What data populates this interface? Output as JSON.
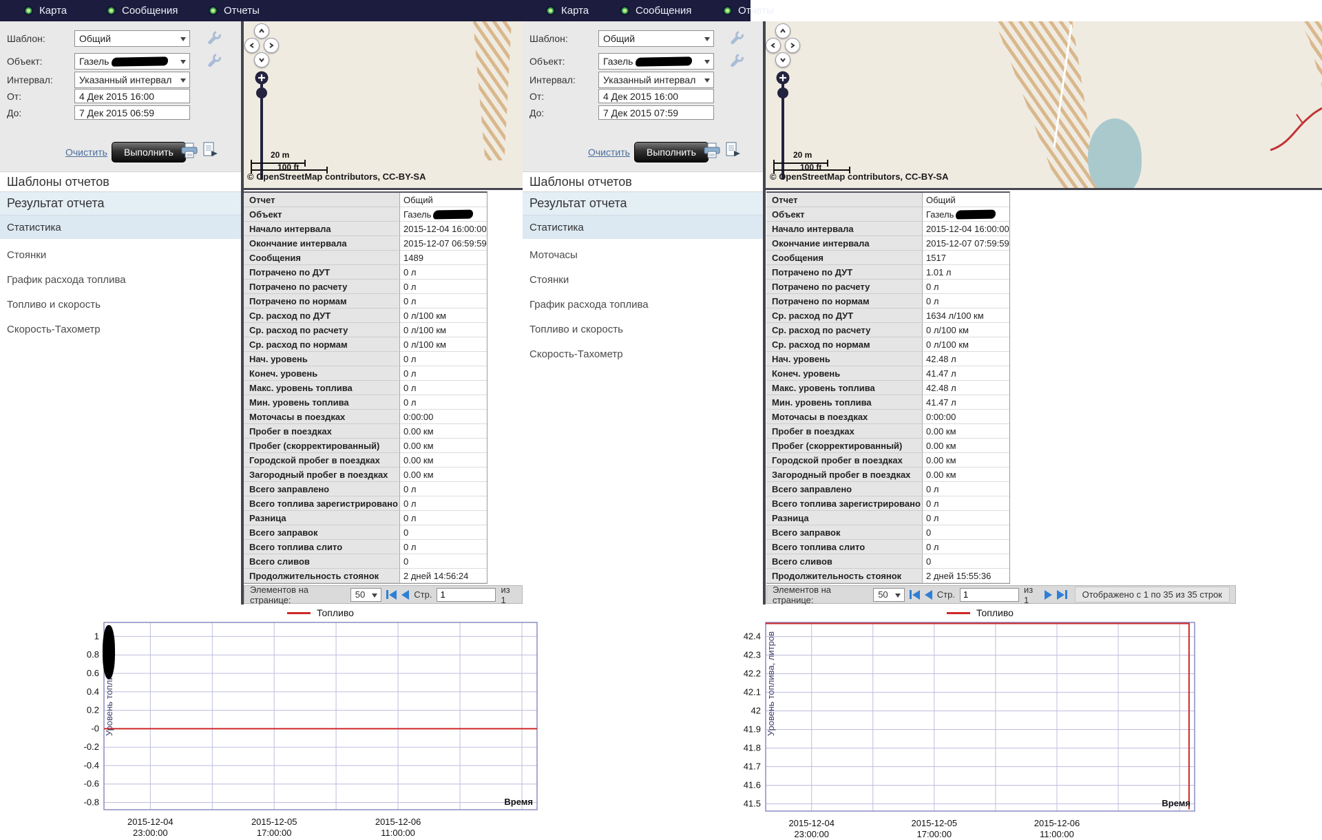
{
  "panels": [
    {
      "nav": {
        "items": [
          "Карта",
          "Сообщения",
          "Отчеты"
        ]
      },
      "form": {
        "template_label": "Шаблон:",
        "template_value": "Общий",
        "object_label": "Объект:",
        "object_value": "Газель",
        "interval_label": "Интервал:",
        "interval_value": "Указанный интервал",
        "from_label": "От:",
        "from_value": "4 Дек 2015 16:00",
        "to_label": "До:",
        "to_value": "7 Дек 2015 06:59",
        "clear_label": "Очистить",
        "run_label": "Выполнить"
      },
      "map": {
        "scale_m": "20 m",
        "scale_ft": "100 ft",
        "copyright": "© OpenStreetMap contributors, CC-BY-SA"
      },
      "sidebar": {
        "header": "Шаблоны отчетов",
        "result": "Результат отчета",
        "selected": "Статистика",
        "items": [
          "Стоянки",
          "График расхода топлива",
          "Топливо и скорость",
          "Скорость-Тахометр"
        ]
      },
      "stats_rows": [
        {
          "label": "Отчет",
          "value": "Общий"
        },
        {
          "label": "Объект",
          "value": "Газель",
          "redacted": true
        },
        {
          "label": "Начало интервала",
          "value": "2015-12-04 16:00:00"
        },
        {
          "label": "Окончание интервала",
          "value": "2015-12-07 06:59:59"
        },
        {
          "label": "Сообщения",
          "value": "1489"
        },
        {
          "label": "Потрачено по ДУТ",
          "value": "0 л"
        },
        {
          "label": "Потрачено по расчету",
          "value": "0 л"
        },
        {
          "label": "Потрачено по нормам",
          "value": "0 л"
        },
        {
          "label": "Ср. расход по ДУТ",
          "value": "0 л/100 км"
        },
        {
          "label": "Ср. расход по расчету",
          "value": "0 л/100 км"
        },
        {
          "label": "Ср. расход по нормам",
          "value": "0 л/100 км"
        },
        {
          "label": "Нач. уровень",
          "value": "0 л"
        },
        {
          "label": "Конеч. уровень",
          "value": "0 л"
        },
        {
          "label": "Макс. уровень топлива",
          "value": "0 л"
        },
        {
          "label": "Мин. уровень топлива",
          "value": "0 л"
        },
        {
          "label": "Моточасы в поездках",
          "value": "0:00:00"
        },
        {
          "label": "Пробег в поездках",
          "value": "0.00 км"
        },
        {
          "label": "Пробег (скорректированный)",
          "value": "0.00 км"
        },
        {
          "label": "Городской пробег в поездках",
          "value": "0.00 км"
        },
        {
          "label": "Загородный пробег в поездках",
          "value": "0.00 км"
        },
        {
          "label": "Всего заправлено",
          "value": "0 л"
        },
        {
          "label": "Всего топлива зарегистрировано",
          "value": "0 л"
        },
        {
          "label": "Разница",
          "value": "0 л"
        },
        {
          "label": "Всего заправок",
          "value": "0"
        },
        {
          "label": "Всего топлива слито",
          "value": "0 л"
        },
        {
          "label": "Всего сливов",
          "value": "0"
        },
        {
          "label": "Продолжительность стоянок",
          "value": "2 дней 14:56:24"
        }
      ],
      "pagination": {
        "items_label": "Элементов на странице:",
        "per_page": "50",
        "page_label": "Стр.",
        "page_value": "1",
        "of_label": "из 1"
      }
    },
    {
      "nav": {
        "items": [
          "Карта",
          "Сообщения",
          "Отчеты"
        ]
      },
      "form": {
        "template_label": "Шаблон:",
        "template_value": "Общий",
        "object_label": "Объект:",
        "object_value": "Газель",
        "interval_label": "Интервал:",
        "interval_value": "Указанный интервал",
        "from_label": "От:",
        "from_value": "4 Дек 2015 16:00",
        "to_label": "До:",
        "to_value": "7 Дек 2015 07:59",
        "clear_label": "Очистить",
        "run_label": "Выполнить"
      },
      "map": {
        "scale_m": "20 m",
        "scale_ft": "100 ft",
        "copyright": "© OpenStreetMap contributors, CC-BY-SA"
      },
      "sidebar": {
        "header": "Шаблоны отчетов",
        "result": "Результат отчета",
        "selected": "Статистика",
        "items": [
          "Моточасы",
          "Стоянки",
          "График расхода топлива",
          "Топливо и скорость",
          "Скорость-Тахометр"
        ]
      },
      "stats_rows": [
        {
          "label": "Отчет",
          "value": "Общий"
        },
        {
          "label": "Объект",
          "value": "Газель",
          "redacted": true
        },
        {
          "label": "Начало интервала",
          "value": "2015-12-04 16:00:00"
        },
        {
          "label": "Окончание интервала",
          "value": "2015-12-07 07:59:59"
        },
        {
          "label": "Сообщения",
          "value": "1517"
        },
        {
          "label": "Потрачено по ДУТ",
          "value": "1.01 л"
        },
        {
          "label": "Потрачено по расчету",
          "value": "0 л"
        },
        {
          "label": "Потрачено по нормам",
          "value": "0 л"
        },
        {
          "label": "Ср. расход по ДУТ",
          "value": "1634 л/100 км"
        },
        {
          "label": "Ср. расход по расчету",
          "value": "0 л/100 км"
        },
        {
          "label": "Ср. расход по нормам",
          "value": "0 л/100 км"
        },
        {
          "label": "Нач. уровень",
          "value": "42.48 л"
        },
        {
          "label": "Конеч. уровень",
          "value": "41.47 л"
        },
        {
          "label": "Макс. уровень топлива",
          "value": "42.48 л"
        },
        {
          "label": "Мин. уровень топлива",
          "value": "41.47 л"
        },
        {
          "label": "Моточасы в поездках",
          "value": "0:00:00"
        },
        {
          "label": "Пробег в поездках",
          "value": "0.00 км"
        },
        {
          "label": "Пробег (скорректированный)",
          "value": "0.00 км"
        },
        {
          "label": "Городской пробег в поездках",
          "value": "0.00 км"
        },
        {
          "label": "Загородный пробег в поездках",
          "value": "0.00 км"
        },
        {
          "label": "Всего заправлено",
          "value": "0 л"
        },
        {
          "label": "Всего топлива зарегистрировано",
          "value": "0 л"
        },
        {
          "label": "Разница",
          "value": "0 л"
        },
        {
          "label": "Всего заправок",
          "value": "0"
        },
        {
          "label": "Всего топлива слито",
          "value": "0 л"
        },
        {
          "label": "Всего сливов",
          "value": "0"
        },
        {
          "label": "Продолжительность стоянок",
          "value": "2 дней 15:55:36"
        }
      ],
      "pagination": {
        "items_label": "Элементов на странице:",
        "per_page": "50",
        "page_label": "Стр.",
        "page_value": "1",
        "of_label": "из 1",
        "shown_text": "Отображено с 1 по 35 из 35 строк"
      }
    }
  ],
  "chart_data": [
    {
      "type": "line",
      "title": "",
      "legend_position": "top",
      "ylabel": "Уровень топлива, литров",
      "xlabel": "Время",
      "yticks": [
        "1",
        "0.8",
        "0.6",
        "0.4",
        "0.2",
        "-0",
        "-0.2",
        "-0.4",
        "-0.6",
        "-0.8"
      ],
      "ytick_values": [
        1,
        0.8,
        0.6,
        0.4,
        0.2,
        0,
        -0.2,
        -0.4,
        -0.6,
        -0.8
      ],
      "xticks": [
        "2015-12-04 23:00:00",
        "2015-12-05 17:00:00",
        "2015-12-06 11:00:00"
      ],
      "grid": true,
      "series": [
        {
          "name": "Топливо",
          "color": "#cf2727",
          "points": [
            [
              0,
              0
            ],
            [
              1,
              0
            ]
          ]
        }
      ]
    },
    {
      "type": "line",
      "title": "",
      "legend_position": "top",
      "ylabel": "Уровень топлива, литров",
      "xlabel": "Время",
      "yticks": [
        "42.4",
        "42.3",
        "42.2",
        "42.1",
        "42",
        "41.9",
        "41.8",
        "41.7",
        "41.6",
        "41.5"
      ],
      "ytick_values": [
        42.4,
        42.3,
        42.2,
        42.1,
        42.0,
        41.9,
        41.8,
        41.7,
        41.6,
        41.5
      ],
      "xticks": [
        "2015-12-04 23:00:00",
        "2015-12-05 17:00:00",
        "2015-12-06 11:00:00"
      ],
      "grid": true,
      "series": [
        {
          "name": "Топливо",
          "color": "#cf2727",
          "points": [
            [
              0,
              42.48
            ],
            [
              0.987,
              42.48
            ],
            [
              0.987,
              41.47
            ]
          ]
        }
      ]
    }
  ]
}
